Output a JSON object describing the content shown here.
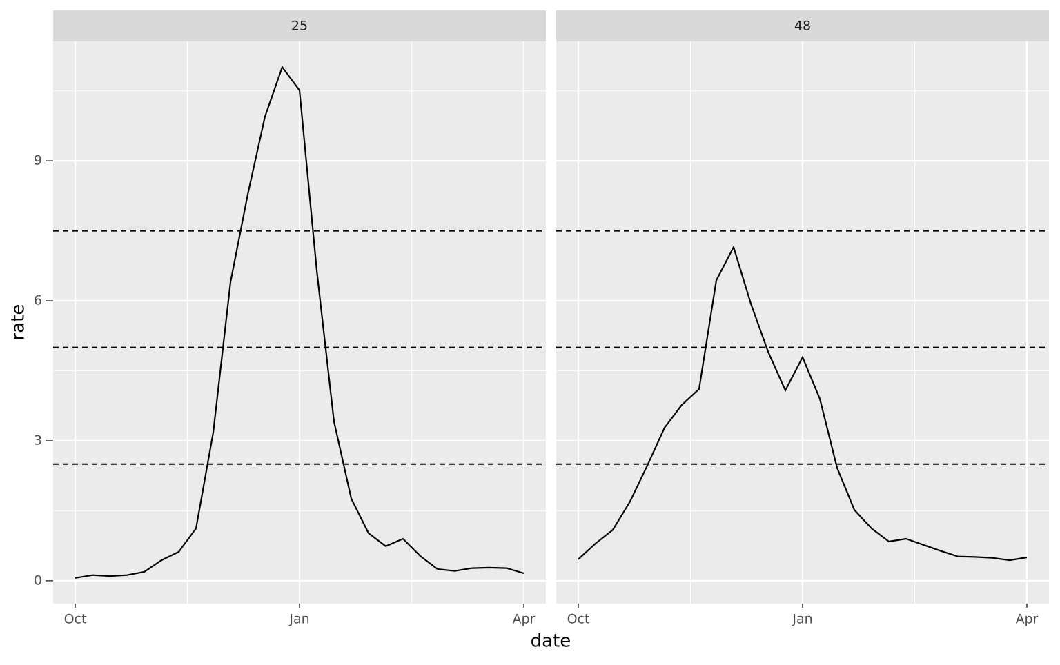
{
  "chart_data": {
    "type": "line",
    "x_label": "date",
    "y_label": "rate",
    "categories": [
      "Oct",
      null,
      null,
      null,
      null,
      null,
      null,
      null,
      null,
      null,
      null,
      null,
      null,
      "Jan",
      null,
      null,
      null,
      null,
      null,
      null,
      null,
      null,
      null,
      null,
      null,
      null,
      "Apr"
    ],
    "ylim": [
      -0.49,
      11.56
    ],
    "yticks": [
      0,
      3,
      6,
      9
    ],
    "hlines": [
      2.5,
      5,
      7.5
    ],
    "grid": true,
    "panels": [
      {
        "title": "25",
        "color": "#000000",
        "values": [
          0.06,
          0.12,
          0.1,
          0.12,
          0.19,
          0.44,
          0.62,
          1.12,
          3.18,
          6.4,
          8.28,
          9.95,
          11.01,
          10.51,
          6.65,
          3.41,
          1.76,
          1.02,
          0.74,
          0.9,
          0.53,
          0.25,
          0.21,
          0.27,
          0.28,
          0.27,
          0.16
        ]
      },
      {
        "title": "48",
        "color": "#000000",
        "values": [
          0.46,
          0.8,
          1.09,
          1.7,
          2.47,
          3.28,
          3.77,
          4.11,
          6.44,
          7.15,
          5.94,
          4.91,
          4.08,
          4.79,
          3.9,
          2.42,
          1.52,
          1.12,
          0.84,
          0.9,
          0.77,
          0.64,
          0.52,
          0.51,
          0.49,
          0.44,
          0.5
        ]
      }
    ]
  }
}
